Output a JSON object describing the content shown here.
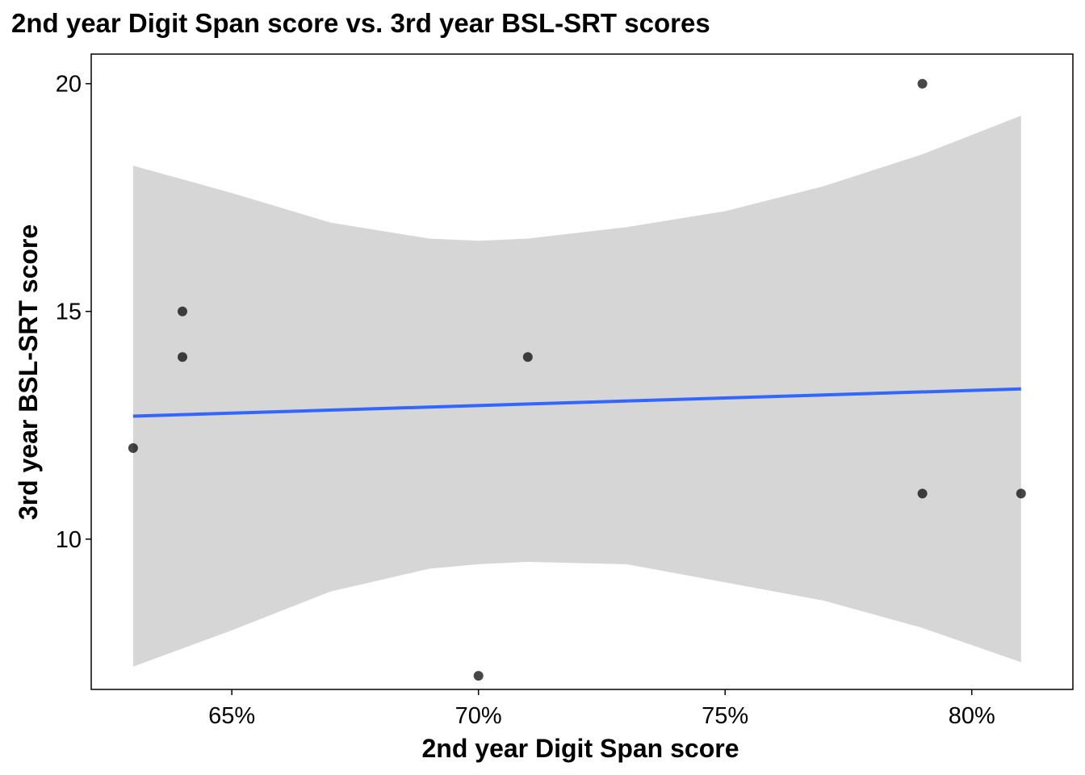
{
  "chart_data": {
    "type": "scatter",
    "title": "2nd year Digit Span score vs. 3rd year BSL-SRT scores",
    "xlabel": "2nd year Digit Span score",
    "ylabel": "3rd year BSL-SRT score",
    "xlim": [
      0.6215,
      0.8205
    ],
    "ylim": [
      6.7,
      20.65
    ],
    "x_ticks": [
      0.65,
      0.7,
      0.75,
      0.8
    ],
    "x_tick_labels": [
      "65%",
      "70%",
      "75%",
      "80%"
    ],
    "y_ticks": [
      10,
      15,
      20
    ],
    "y_tick_labels": [
      "10",
      "15",
      "20"
    ],
    "grid": false,
    "points": [
      {
        "x": 0.63,
        "y": 12
      },
      {
        "x": 0.64,
        "y": 15
      },
      {
        "x": 0.64,
        "y": 14
      },
      {
        "x": 0.7,
        "y": 7
      },
      {
        "x": 0.71,
        "y": 14
      },
      {
        "x": 0.79,
        "y": 20
      },
      {
        "x": 0.79,
        "y": 11
      },
      {
        "x": 0.81,
        "y": 11
      }
    ],
    "trend_line": {
      "x": [
        0.63,
        0.81
      ],
      "y": [
        12.7,
        13.3
      ]
    },
    "confidence_band": {
      "x": [
        0.63,
        0.65,
        0.67,
        0.69,
        0.7,
        0.71,
        0.73,
        0.75,
        0.77,
        0.79,
        0.81
      ],
      "upper": [
        18.2,
        17.6,
        16.95,
        16.6,
        16.55,
        16.6,
        16.85,
        17.2,
        17.75,
        18.45,
        19.3
      ],
      "lower": [
        7.2,
        8.0,
        8.85,
        9.35,
        9.45,
        9.5,
        9.45,
        9.05,
        8.65,
        8.05,
        7.3
      ]
    },
    "colors": {
      "point": "#000000",
      "trend": "#3366FF",
      "band": "#D6D6D6",
      "panel_border": "#000000"
    }
  }
}
